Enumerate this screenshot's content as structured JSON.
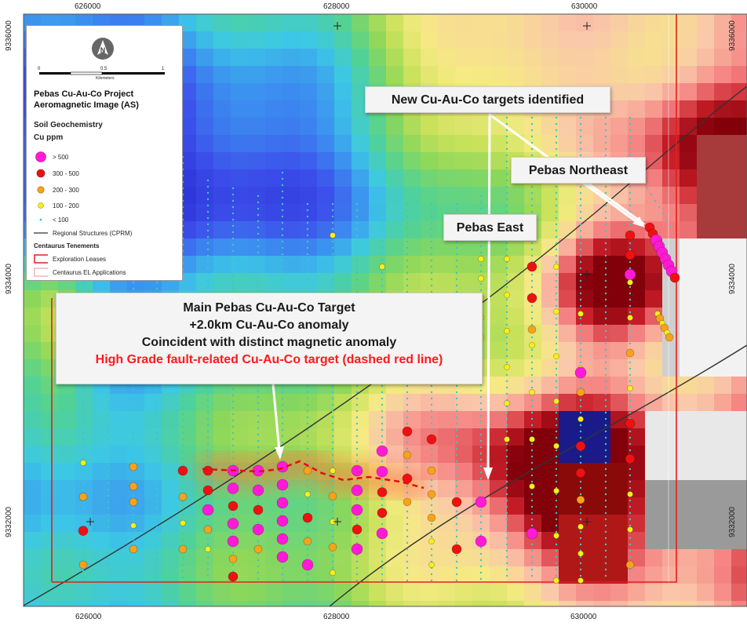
{
  "coordinates": {
    "x_ticks": [
      "626000",
      "628000",
      "630000"
    ],
    "y_ticks_left": [
      "9336000",
      "9334000",
      "9332000"
    ],
    "y_ticks_right": [
      "9336000",
      "9334000",
      "9332000"
    ]
  },
  "legend": {
    "north_arrow_icon": "north-arrow-icon",
    "scale_bar": {
      "ticks": [
        "0",
        "0.5",
        "1"
      ],
      "unit": "Kilometers"
    },
    "title_line1": "Pebas Cu-Au-Co Project",
    "title_line2": "Aeromagnetic Image (AS)",
    "soil_heading": "Soil Geochemistry",
    "cu_heading": "Cu ppm",
    "classes": [
      {
        "label": "> 500",
        "color": "#ff1ad5"
      },
      {
        "label": "300 - 500",
        "color": "#ee1111"
      },
      {
        "label": "200 - 300",
        "color": "#f7a21b"
      },
      {
        "label": "100 - 200",
        "color": "#f7ef1b"
      },
      {
        "label": "< 100",
        "color": "#3fc7c2"
      }
    ],
    "structures": "Regional Structures (CPRM)",
    "tenements_heading": "Centaurus Tenements",
    "exploration_leases": "Exploration Leases",
    "el_applications": "Centaurus EL Applications"
  },
  "callouts": {
    "new_targets": "New Cu-Au-Co targets identified",
    "pebas_northeast": "Pebas Northeast",
    "pebas_east": "Pebas East",
    "main_target_line1": "Main Pebas Cu-Au-Co Target",
    "main_target_line2": "+2.0km Cu-Au-Co anomaly",
    "main_target_line3": "Coincident with distinct magnetic anomaly",
    "main_target_line4": "High Grade fault-related Cu-Au-Co target (dashed red line)"
  },
  "colors": {
    "lease_border": "#e02020",
    "fault_dashed": "#e01010",
    "structure_line": "#333333"
  }
}
